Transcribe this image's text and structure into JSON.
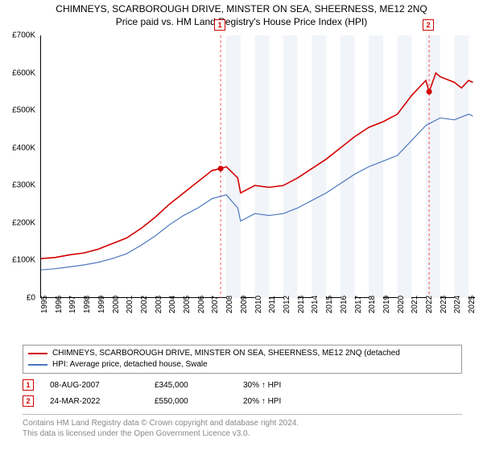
{
  "title1": "CHIMNEYS, SCARBOROUGH DRIVE, MINSTER ON SEA, SHEERNESS, ME12 2NQ",
  "title2": "Price paid vs. HM Land Registry's House Price Index (HPI)",
  "chart": {
    "type": "line",
    "background_color": "#ffffff",
    "banded_bg_color": "#f1f4f9",
    "banded_start_year": 2008,
    "vline_color": "#ff4d4d",
    "vline_dash": "3,3",
    "axis_color": "#000000",
    "tick_color": "#000000",
    "y": {
      "min": 0,
      "max": 700000,
      "step": 100000,
      "labels": [
        "£0",
        "£100K",
        "£200K",
        "£300K",
        "£400K",
        "£500K",
        "£600K",
        "£700K"
      ],
      "label_fontsize": 10
    },
    "x": {
      "min": 1995,
      "max": 2025.5,
      "ticks": [
        1995,
        1996,
        1997,
        1998,
        1999,
        2000,
        2001,
        2002,
        2003,
        2004,
        2005,
        2006,
        2007,
        2008,
        2009,
        2010,
        2011,
        2012,
        2013,
        2014,
        2015,
        2016,
        2017,
        2018,
        2019,
        2020,
        2021,
        2022,
        2023,
        2024,
        2025
      ],
      "label_fontsize": 10
    },
    "series": [
      {
        "name": "property",
        "label": "CHIMNEYS, SCARBOROUGH DRIVE, MINSTER ON SEA, SHEERNESS, ME12 2NQ (detached",
        "color": "#d40000",
        "line_width": 1.6,
        "points": [
          [
            1995,
            105000
          ],
          [
            1996,
            108000
          ],
          [
            1997,
            115000
          ],
          [
            1998,
            120000
          ],
          [
            1999,
            130000
          ],
          [
            2000,
            145000
          ],
          [
            2001,
            160000
          ],
          [
            2002,
            185000
          ],
          [
            2003,
            215000
          ],
          [
            2004,
            250000
          ],
          [
            2005,
            280000
          ],
          [
            2006,
            310000
          ],
          [
            2007,
            340000
          ],
          [
            2007.6,
            345000
          ],
          [
            2008,
            350000
          ],
          [
            2008.8,
            320000
          ],
          [
            2009,
            280000
          ],
          [
            2009.5,
            290000
          ],
          [
            2010,
            300000
          ],
          [
            2011,
            295000
          ],
          [
            2012,
            300000
          ],
          [
            2013,
            320000
          ],
          [
            2014,
            345000
          ],
          [
            2015,
            370000
          ],
          [
            2016,
            400000
          ],
          [
            2017,
            430000
          ],
          [
            2018,
            455000
          ],
          [
            2019,
            470000
          ],
          [
            2020,
            490000
          ],
          [
            2021,
            540000
          ],
          [
            2022,
            580000
          ],
          [
            2022.23,
            550000
          ],
          [
            2022.7,
            600000
          ],
          [
            2023,
            590000
          ],
          [
            2024,
            575000
          ],
          [
            2024.5,
            560000
          ],
          [
            2025,
            580000
          ],
          [
            2025.3,
            575000
          ]
        ]
      },
      {
        "name": "hpi",
        "label": "HPI: Average price, detached house, Swale",
        "color": "#4b77be",
        "line_width": 1.2,
        "points": [
          [
            1995,
            75000
          ],
          [
            1996,
            78000
          ],
          [
            1997,
            83000
          ],
          [
            1998,
            88000
          ],
          [
            1999,
            95000
          ],
          [
            2000,
            105000
          ],
          [
            2001,
            118000
          ],
          [
            2002,
            140000
          ],
          [
            2003,
            165000
          ],
          [
            2004,
            195000
          ],
          [
            2005,
            220000
          ],
          [
            2006,
            240000
          ],
          [
            2007,
            265000
          ],
          [
            2008,
            275000
          ],
          [
            2008.8,
            240000
          ],
          [
            2009,
            205000
          ],
          [
            2009.5,
            215000
          ],
          [
            2010,
            225000
          ],
          [
            2011,
            220000
          ],
          [
            2012,
            225000
          ],
          [
            2013,
            240000
          ],
          [
            2014,
            260000
          ],
          [
            2015,
            280000
          ],
          [
            2016,
            305000
          ],
          [
            2017,
            330000
          ],
          [
            2018,
            350000
          ],
          [
            2019,
            365000
          ],
          [
            2020,
            380000
          ],
          [
            2021,
            420000
          ],
          [
            2022,
            460000
          ],
          [
            2023,
            480000
          ],
          [
            2024,
            475000
          ],
          [
            2025,
            490000
          ],
          [
            2025.3,
            485000
          ]
        ]
      }
    ],
    "sale_markers": [
      {
        "n": "1",
        "year": 2007.6,
        "price": 345000,
        "color": "#d40000"
      },
      {
        "n": "2",
        "year": 2022.23,
        "price": 550000,
        "color": "#d40000"
      }
    ],
    "marker_radius": 3.5,
    "marker_box_top_offset": -20
  },
  "legend": {
    "rows": [
      {
        "color": "#d40000",
        "text": "CHIMNEYS, SCARBOROUGH DRIVE, MINSTER ON SEA, SHEERNESS, ME12 2NQ (detached"
      },
      {
        "color": "#4b77be",
        "text": "HPI: Average price, detached house, Swale"
      }
    ]
  },
  "sales": [
    {
      "n": "1",
      "color": "#d40000",
      "date": "08-AUG-2007",
      "price": "£345,000",
      "diff": "30% ↑ HPI"
    },
    {
      "n": "2",
      "color": "#d40000",
      "date": "24-MAR-2022",
      "price": "£550,000",
      "diff": "20% ↑ HPI"
    }
  ],
  "footer": {
    "line1": "Contains HM Land Registry data © Crown copyright and database right 2024.",
    "line2": "This data is licensed under the Open Government Licence v3.0."
  }
}
